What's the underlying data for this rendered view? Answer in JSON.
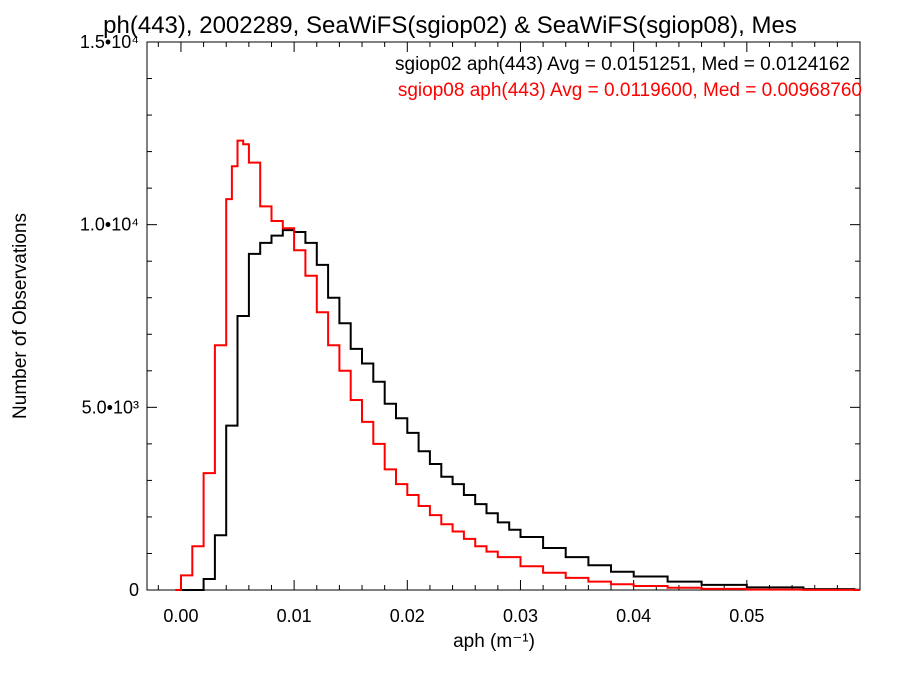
{
  "chart_data": {
    "type": "line",
    "title": "ph(443), 2002289, SeaWiFS(sgiop02) & SeaWiFS(sgiop08), Mes",
    "xlabel": "aph (m⁻¹)",
    "ylabel": "Number of Observations",
    "xlim": [
      -0.003,
      0.06
    ],
    "ylim": [
      0,
      15000
    ],
    "x_ticks": [
      {
        "value": 0.0,
        "label": "0.00"
      },
      {
        "value": 0.01,
        "label": "0.01"
      },
      {
        "value": 0.02,
        "label": "0.02"
      },
      {
        "value": 0.03,
        "label": "0.03"
      },
      {
        "value": 0.04,
        "label": "0.04"
      },
      {
        "value": 0.05,
        "label": "0.05"
      }
    ],
    "y_ticks": [
      {
        "value": 0,
        "label": "0"
      },
      {
        "value": 5000,
        "label": "5.0•10³"
      },
      {
        "value": 10000,
        "label": "1.0•10⁴"
      },
      {
        "value": 15000,
        "label": "1.5•10⁴"
      }
    ],
    "grid": false,
    "legend_placement": "top-right",
    "series": [
      {
        "name": "sgiop02",
        "color": "#000000",
        "stats_label": "sgiop02 aph(443) Avg = 0.0151251, Med = 0.0124162",
        "x": [
          0.0,
          0.001,
          0.002,
          0.003,
          0.004,
          0.005,
          0.006,
          0.007,
          0.008,
          0.009,
          0.01,
          0.011,
          0.012,
          0.013,
          0.014,
          0.015,
          0.016,
          0.017,
          0.018,
          0.019,
          0.02,
          0.021,
          0.022,
          0.023,
          0.024,
          0.025,
          0.026,
          0.027,
          0.028,
          0.029,
          0.03,
          0.032,
          0.034,
          0.036,
          0.038,
          0.04,
          0.043,
          0.046,
          0.05,
          0.055,
          0.0595
        ],
        "values": [
          0,
          0,
          300,
          1500,
          4500,
          7500,
          9200,
          9500,
          9700,
          9850,
          9800,
          9500,
          8900,
          8000,
          7300,
          6600,
          6200,
          5700,
          5100,
          4700,
          4300,
          3800,
          3450,
          3100,
          2900,
          2600,
          2350,
          2100,
          1850,
          1650,
          1450,
          1150,
          900,
          680,
          500,
          370,
          230,
          140,
          70,
          25,
          5
        ]
      },
      {
        "name": "sgiop08",
        "color": "#ff0000",
        "stats_label": "sgiop08 aph(443) Avg = 0.0119600, Med = 0.00968760",
        "x": [
          -0.0005,
          0.0,
          0.001,
          0.002,
          0.003,
          0.004,
          0.0045,
          0.005,
          0.0055,
          0.006,
          0.007,
          0.008,
          0.009,
          0.01,
          0.011,
          0.012,
          0.013,
          0.014,
          0.015,
          0.016,
          0.017,
          0.018,
          0.019,
          0.02,
          0.021,
          0.022,
          0.023,
          0.024,
          0.025,
          0.026,
          0.027,
          0.028,
          0.03,
          0.032,
          0.034,
          0.036,
          0.038,
          0.04,
          0.043,
          0.046,
          0.05,
          0.055,
          0.0595
        ],
        "values": [
          0,
          400,
          1200,
          3200,
          6700,
          10700,
          11600,
          12300,
          12200,
          11700,
          10500,
          10100,
          9900,
          9300,
          8600,
          7600,
          6700,
          6000,
          5200,
          4600,
          4000,
          3300,
          2900,
          2600,
          2300,
          2050,
          1800,
          1600,
          1400,
          1200,
          1050,
          900,
          650,
          470,
          330,
          230,
          160,
          110,
          60,
          30,
          12,
          4,
          1
        ]
      }
    ]
  }
}
